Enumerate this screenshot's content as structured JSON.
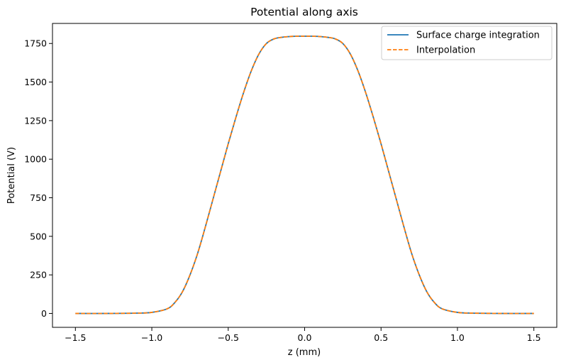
{
  "chart_data": {
    "type": "line",
    "title": "Potential along axis",
    "xlabel": "z (mm)",
    "ylabel": "Potential (V)",
    "xlim": [
      -1.65,
      1.65
    ],
    "ylim": [
      -90,
      1880
    ],
    "xticks": [
      -1.5,
      -1.0,
      -0.5,
      0.0,
      0.5,
      1.0,
      1.5
    ],
    "xtick_labels": [
      "−1.5",
      "−1.0",
      "−0.5",
      "0.0",
      "0.5",
      "1.0",
      "1.5"
    ],
    "yticks": [
      0,
      250,
      500,
      750,
      1000,
      1250,
      1500,
      1750
    ],
    "ytick_labels": [
      "0",
      "250",
      "500",
      "750",
      "1000",
      "1250",
      "1500",
      "1750"
    ],
    "grid": false,
    "legend_position": "top-right",
    "series": [
      {
        "name": "Surface charge integration",
        "color": "#1f77b4",
        "style": "solid",
        "x": [
          -1.5,
          -1.3,
          -1.1,
          -1.0,
          -0.9,
          -0.85,
          -0.8,
          -0.75,
          -0.7,
          -0.65,
          -0.6,
          -0.55,
          -0.5,
          -0.45,
          -0.4,
          -0.35,
          -0.3,
          -0.25,
          -0.2,
          -0.15,
          -0.1,
          -0.05,
          0.0,
          0.05,
          0.1,
          0.15,
          0.2,
          0.25,
          0.3,
          0.35,
          0.4,
          0.45,
          0.5,
          0.55,
          0.6,
          0.65,
          0.7,
          0.75,
          0.8,
          0.85,
          0.9,
          1.0,
          1.1,
          1.3,
          1.5
        ],
        "y": [
          0,
          0,
          2,
          7,
          30,
          70,
          140,
          250,
          390,
          560,
          740,
          920,
          1100,
          1270,
          1430,
          1570,
          1680,
          1750,
          1780,
          1790,
          1795,
          1797,
          1797,
          1797,
          1795,
          1790,
          1780,
          1750,
          1680,
          1570,
          1430,
          1270,
          1100,
          920,
          740,
          560,
          390,
          250,
          140,
          70,
          30,
          7,
          2,
          0,
          0
        ]
      },
      {
        "name": "Interpolation",
        "color": "#ff7f0e",
        "style": "dashed",
        "x": [
          -1.5,
          -1.3,
          -1.1,
          -1.0,
          -0.9,
          -0.85,
          -0.8,
          -0.75,
          -0.7,
          -0.65,
          -0.6,
          -0.55,
          -0.5,
          -0.45,
          -0.4,
          -0.35,
          -0.3,
          -0.25,
          -0.2,
          -0.15,
          -0.1,
          -0.05,
          0.0,
          0.05,
          0.1,
          0.15,
          0.2,
          0.25,
          0.3,
          0.35,
          0.4,
          0.45,
          0.5,
          0.55,
          0.6,
          0.65,
          0.7,
          0.75,
          0.8,
          0.85,
          0.9,
          1.0,
          1.1,
          1.3,
          1.5
        ],
        "y": [
          0,
          0,
          2,
          7,
          30,
          70,
          140,
          250,
          390,
          560,
          740,
          920,
          1100,
          1270,
          1430,
          1570,
          1680,
          1750,
          1780,
          1790,
          1795,
          1797,
          1797,
          1797,
          1795,
          1790,
          1780,
          1750,
          1680,
          1570,
          1430,
          1270,
          1100,
          920,
          740,
          560,
          390,
          250,
          140,
          70,
          30,
          7,
          2,
          0,
          0
        ]
      }
    ]
  }
}
